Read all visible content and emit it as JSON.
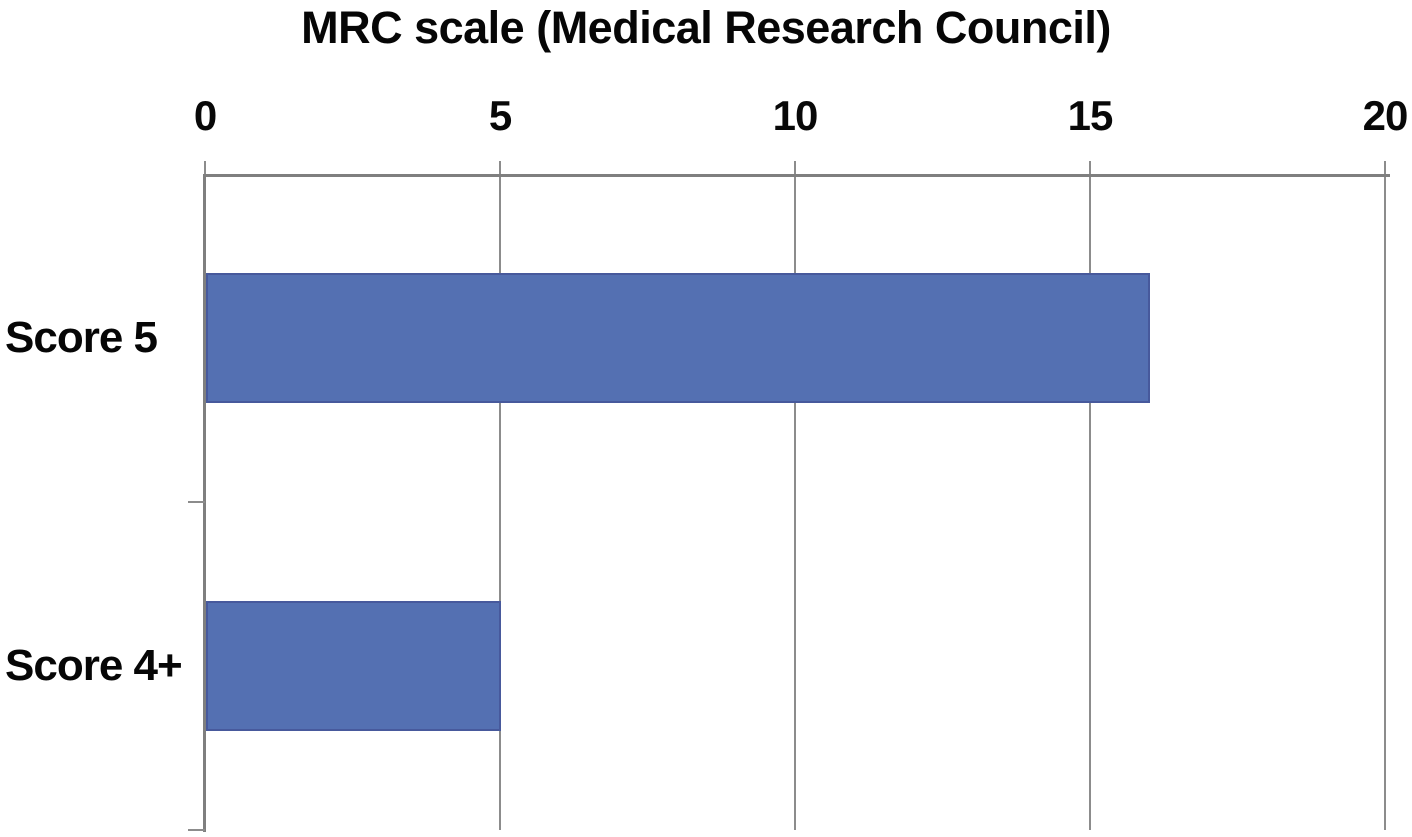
{
  "chart_data": {
    "type": "bar",
    "orientation": "horizontal",
    "title": "MRC scale (Medical Research Council)",
    "categories": [
      "Score 5",
      "Score 4+"
    ],
    "values": [
      16,
      5
    ],
    "x_ticks": [
      0,
      5,
      10,
      15,
      20
    ],
    "xlim": [
      0,
      20
    ],
    "axis_position": "top",
    "grid": true,
    "legend": "none",
    "xlabel": "",
    "ylabel": "",
    "colors": {
      "bar_fill": "#5470b2",
      "bar_border": "#47599c",
      "axis_line": "#7f7f7f",
      "gridline": "#8c8c8c",
      "text": "#060606",
      "background": "#ffffff"
    }
  }
}
